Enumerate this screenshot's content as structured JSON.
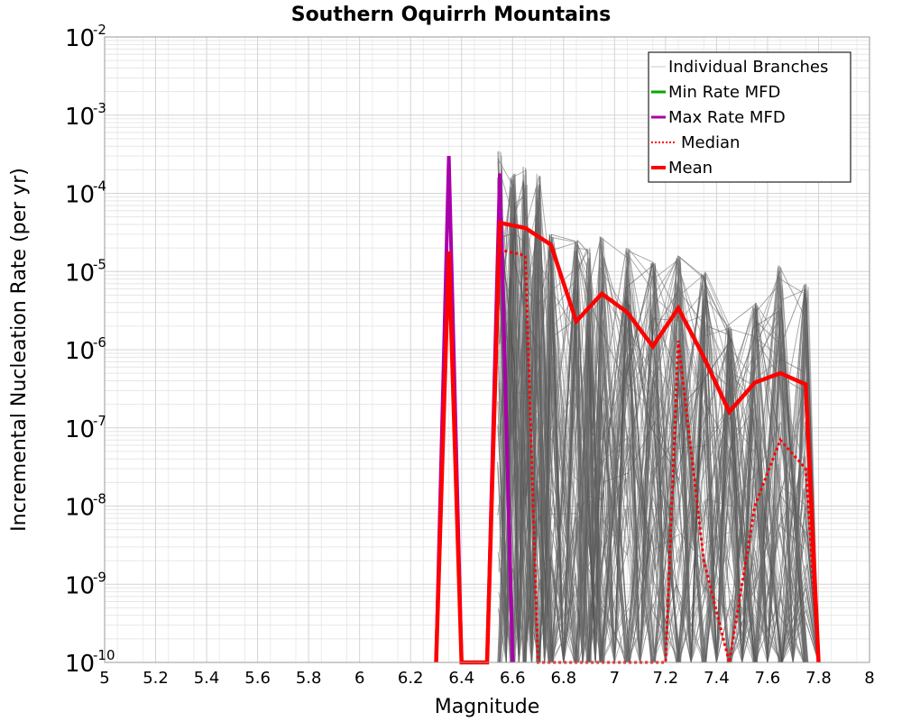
{
  "chart_data": {
    "type": "line",
    "title": "Southern Oquirrh Mountains",
    "xlabel": "Magnitude",
    "ylabel": "Incremental Nucleation Rate (per yr)",
    "xlim": [
      5,
      8
    ],
    "ylim": [
      1e-10,
      0.01
    ],
    "yscale": "log",
    "grid": true,
    "legend_position": "top-right",
    "x_ticks": [
      "5",
      "5.2",
      "5.4",
      "5.6",
      "5.8",
      "6",
      "6.2",
      "6.4",
      "6.6",
      "6.8",
      "7",
      "7.2",
      "7.4",
      "7.6",
      "7.8",
      "8"
    ],
    "y_tick_exponents": [
      "-10",
      "-9",
      "-8",
      "-7",
      "-6",
      "-5",
      "-4",
      "-3",
      "-2"
    ],
    "y_tick_base": "10",
    "legend": [
      {
        "label": "Individual Branches",
        "color": "#c8c8c8",
        "style": "solid-thin"
      },
      {
        "label": "Min Rate MFD",
        "color": "#00aa00",
        "style": "solid"
      },
      {
        "label": "Max Rate MFD",
        "color": "#aa00aa",
        "style": "solid"
      },
      {
        "label": "Median",
        "color": "#ff0000",
        "style": "dotted"
      },
      {
        "label": "Mean",
        "color": "#ff0000",
        "style": "solid-thick"
      }
    ],
    "series": [
      {
        "name": "Max Rate MFD",
        "color": "#aa00aa",
        "x": [
          6.3,
          6.35,
          6.4,
          6.5,
          6.55,
          6.6
        ],
        "y": [
          1e-10,
          0.0003,
          1e-10,
          1e-10,
          0.00018,
          1e-10
        ]
      },
      {
        "name": "Min Rate MFD",
        "color": "#00aa00",
        "x": [
          6.3,
          6.35,
          6.4
        ],
        "y": [
          1e-10,
          1.8e-05,
          1e-10
        ]
      },
      {
        "name": "Median",
        "color": "#ff0000",
        "x": [
          6.3,
          6.35,
          6.4,
          6.5,
          6.55,
          6.65,
          6.7,
          6.8,
          6.85,
          6.95,
          7.05,
          7.15,
          7.2,
          7.25,
          7.35,
          7.45,
          7.55,
          7.65,
          7.75,
          7.8
        ],
        "y": [
          1e-10,
          1.8e-05,
          1e-10,
          1e-10,
          1.9e-05,
          1.6e-05,
          1e-10,
          1e-10,
          1e-10,
          1e-10,
          1e-10,
          1e-10,
          1e-10,
          1.3e-06,
          2e-09,
          1e-10,
          1e-08,
          7e-08,
          3e-08,
          1e-10
        ]
      },
      {
        "name": "Mean",
        "color": "#ff0000",
        "x": [
          6.3,
          6.35,
          6.4,
          6.5,
          6.55,
          6.65,
          6.75,
          6.85,
          6.95,
          7.05,
          7.15,
          7.25,
          7.35,
          7.45,
          7.55,
          7.65,
          7.75,
          7.8
        ],
        "y": [
          1e-10,
          1.8e-05,
          1e-10,
          1e-10,
          4.2e-05,
          3.6e-05,
          2.2e-05,
          2.3e-06,
          5.2e-06,
          3e-06,
          1.1e-06,
          3.4e-06,
          8e-07,
          1.6e-07,
          3.8e-07,
          5e-07,
          3.6e-07,
          1e-10
        ]
      }
    ],
    "branch_peaks": [
      {
        "x": 6.55,
        "y": 0.00035
      },
      {
        "x": 6.6,
        "y": 0.00018
      },
      {
        "x": 6.65,
        "y": 0.00022
      },
      {
        "x": 6.7,
        "y": 0.00018
      },
      {
        "x": 6.75,
        "y": 3e-05
      },
      {
        "x": 6.85,
        "y": 2.5e-05
      },
      {
        "x": 6.9,
        "y": 2e-05
      },
      {
        "x": 6.95,
        "y": 2.8e-05
      },
      {
        "x": 7.05,
        "y": 2e-05
      },
      {
        "x": 7.15,
        "y": 1.3e-05
      },
      {
        "x": 7.25,
        "y": 1.6e-05
      },
      {
        "x": 7.35,
        "y": 1e-05
      },
      {
        "x": 7.45,
        "y": 2e-06
      },
      {
        "x": 7.55,
        "y": 4e-06
      },
      {
        "x": 7.65,
        "y": 1.2e-05
      },
      {
        "x": 7.75,
        "y": 7e-06
      }
    ]
  }
}
